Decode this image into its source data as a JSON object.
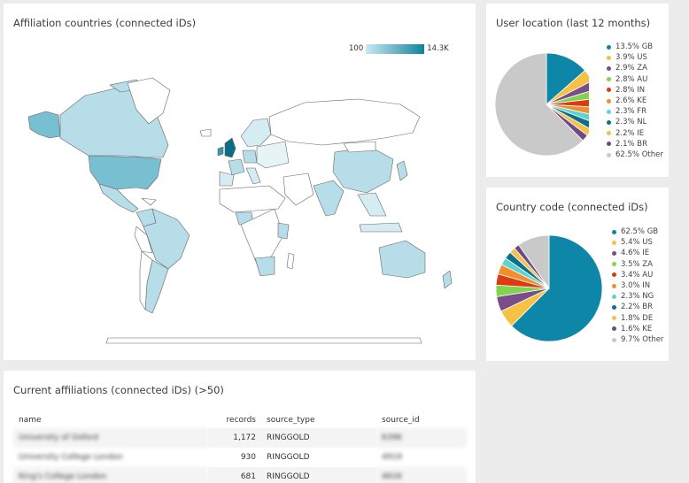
{
  "map_panel": {
    "title": "Affiliation countries (connected iDs)",
    "scale_min": "100",
    "scale_max": "14.3K"
  },
  "location_panel": {
    "title": "User location (last 12 months)",
    "chart_data": {
      "type": "pie",
      "title": "User location (last 12 months)",
      "slices": [
        {
          "label": "13.5% GB",
          "value": 13.5,
          "color": "#0e86a8"
        },
        {
          "label": "3.9% US",
          "value": 3.9,
          "color": "#f7c244"
        },
        {
          "label": "2.9% ZA",
          "value": 2.9,
          "color": "#7a4c8a"
        },
        {
          "label": "2.8% AU",
          "value": 2.8,
          "color": "#82d34f"
        },
        {
          "label": "2.8% IN",
          "value": 2.8,
          "color": "#dc3c12"
        },
        {
          "label": "2.6% KE",
          "value": 2.6,
          "color": "#f28e2c"
        },
        {
          "label": "2.3% FR",
          "value": 2.3,
          "color": "#5fd3cf"
        },
        {
          "label": "2.3% NL",
          "value": 2.3,
          "color": "#0c6f8c"
        },
        {
          "label": "2.2% IE",
          "value": 2.2,
          "color": "#f5c04b"
        },
        {
          "label": "2.1% BR",
          "value": 2.1,
          "color": "#6d4a80"
        },
        {
          "label": "62.5% Other",
          "value": 62.5,
          "color": "#c9c9c9"
        }
      ]
    }
  },
  "country_panel": {
    "title": "Country code (connected iDs)",
    "chart_data": {
      "type": "pie",
      "title": "Country code (connected iDs)",
      "slices": [
        {
          "label": "62.5% GB",
          "value": 62.5,
          "color": "#0e86a8"
        },
        {
          "label": "5.4% US",
          "value": 5.4,
          "color": "#f7c244"
        },
        {
          "label": "4.6% IE",
          "value": 4.6,
          "color": "#7a4c8a"
        },
        {
          "label": "3.5% ZA",
          "value": 3.5,
          "color": "#82d34f"
        },
        {
          "label": "3.4% AU",
          "value": 3.4,
          "color": "#dc3c12"
        },
        {
          "label": "3.0% IN",
          "value": 3.0,
          "color": "#f28e2c"
        },
        {
          "label": "2.3% NG",
          "value": 2.3,
          "color": "#5fd3cf"
        },
        {
          "label": "2.2% BR",
          "value": 2.2,
          "color": "#0c6f8c"
        },
        {
          "label": "1.8% DE",
          "value": 1.8,
          "color": "#f5c04b"
        },
        {
          "label": "1.6% KE",
          "value": 1.6,
          "color": "#6d4a80"
        },
        {
          "label": "9.7% Other",
          "value": 9.7,
          "color": "#c9c9c9"
        }
      ]
    }
  },
  "affiliations_panel": {
    "title": "Current affiliations (connected iDs) (>50)",
    "columns": [
      "name",
      "records",
      "source_type",
      "source_id"
    ],
    "rows": [
      {
        "name": "University of Oxford",
        "records": "1,172",
        "source_type": "RINGGOLD",
        "source_id": "6396"
      },
      {
        "name": "University College London",
        "records": "930",
        "source_type": "RINGGOLD",
        "source_id": "4919"
      },
      {
        "name": "King's College London",
        "records": "681",
        "source_type": "RINGGOLD",
        "source_id": "4616"
      }
    ]
  }
}
